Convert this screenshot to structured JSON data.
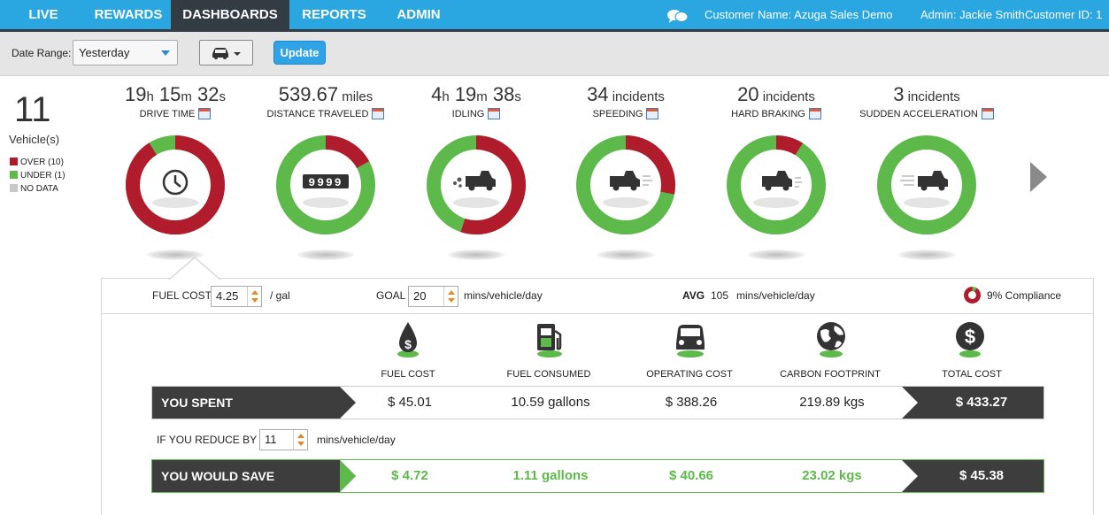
{
  "nav": {
    "tabs": [
      {
        "label": "LIVE",
        "active": false
      },
      {
        "label": "REWARDS",
        "active": false
      },
      {
        "label": "DASHBOARDS",
        "active": true
      },
      {
        "label": "REPORTS",
        "active": false
      },
      {
        "label": "ADMIN",
        "active": false
      }
    ],
    "customer_name": "Customer Name: Azuga Sales Demo",
    "admin": "Admin: Jackie Smith",
    "customer_id": "Customer ID: 1",
    "chat_icon": "chat-bubbles-icon",
    "accent": "#2aa6e0",
    "active_bg": "#333b43"
  },
  "filters": {
    "date_range_label": "Date Range:",
    "date_range_value": "Yesterday",
    "vehicle_filter_icon": "car-icon",
    "update_label": "Update"
  },
  "vehicles": {
    "count": "11",
    "label": "Vehicle(s)",
    "legend": [
      {
        "label": "OVER (10)",
        "color": "#b11c2c"
      },
      {
        "label": "UNDER (1)",
        "color": "#5cb94a"
      },
      {
        "label": "NO DATA",
        "color": "#c8c8c8"
      }
    ]
  },
  "metrics": [
    {
      "name": "drive-time",
      "value_parts": [
        "19",
        "h",
        " 15",
        "m",
        " 32",
        "s"
      ],
      "label": "DRIVE TIME",
      "over_fraction": 0.91,
      "icon": "clock-icon"
    },
    {
      "name": "distance-traveled",
      "value_parts": [
        "539.67",
        " miles"
      ],
      "label": "DISTANCE TRAVELED",
      "over_fraction": 0.17,
      "icon": "odometer-icon"
    },
    {
      "name": "idling",
      "value_parts": [
        "4",
        "h",
        " 19",
        "m",
        " 38",
        "s"
      ],
      "label": "IDLING",
      "over_fraction": 0.55,
      "icon": "idling-truck-icon"
    },
    {
      "name": "speeding",
      "value_parts": [
        "34",
        " incidents"
      ],
      "label": "SPEEDING",
      "over_fraction": 0.28,
      "icon": "speeding-truck-icon"
    },
    {
      "name": "hard-braking",
      "value_parts": [
        "20",
        " incidents"
      ],
      "label": "HARD BRAKING",
      "over_fraction": 0.09,
      "icon": "braking-truck-icon"
    },
    {
      "name": "sudden-acceleration",
      "value_parts": [
        "3",
        " incidents"
      ],
      "label": "SUDDEN ACCELERATION",
      "over_fraction": 0.0,
      "icon": "accelerating-truck-icon"
    }
  ],
  "colors": {
    "over": "#b11c2c",
    "under": "#5cb94a",
    "dark": "#3d3d3d"
  },
  "detail": {
    "fuel_cost_label": "FUEL COST",
    "fuel_cost_value": "4.25",
    "fuel_cost_unit": "/ gal",
    "goal_label": "GOAL",
    "goal_value": "20",
    "goal_unit": "mins/vehicle/day",
    "avg_label": "AVG",
    "avg_value": "105",
    "avg_unit": "mins/vehicle/day",
    "compliance": "9% Compliance",
    "compliance_fraction": 0.09,
    "cost_columns": [
      {
        "label": "FUEL COST",
        "icon": "fuel-drop-dollar-icon"
      },
      {
        "label": "FUEL CONSUMED",
        "icon": "fuel-pump-icon"
      },
      {
        "label": "OPERATING COST",
        "icon": "car-front-icon"
      },
      {
        "label": "CARBON FOOTPRINT",
        "icon": "globe-icon"
      },
      {
        "label": "TOTAL COST",
        "icon": "dollar-coin-icon"
      }
    ],
    "you_spent": {
      "label": "YOU SPENT",
      "values": [
        "$ 45.01",
        "10.59 gallons",
        "$ 388.26",
        "219.89 kgs"
      ],
      "total": "$ 433.27"
    },
    "reduce_label": "IF YOU REDUCE BY",
    "reduce_value": "11",
    "reduce_unit": "mins/vehicle/day",
    "you_would_save": {
      "label": "YOU WOULD SAVE",
      "values": [
        "$ 4.72",
        "1.11 gallons",
        "$ 40.66",
        "23.02 kgs"
      ],
      "total": "$ 45.38"
    }
  }
}
